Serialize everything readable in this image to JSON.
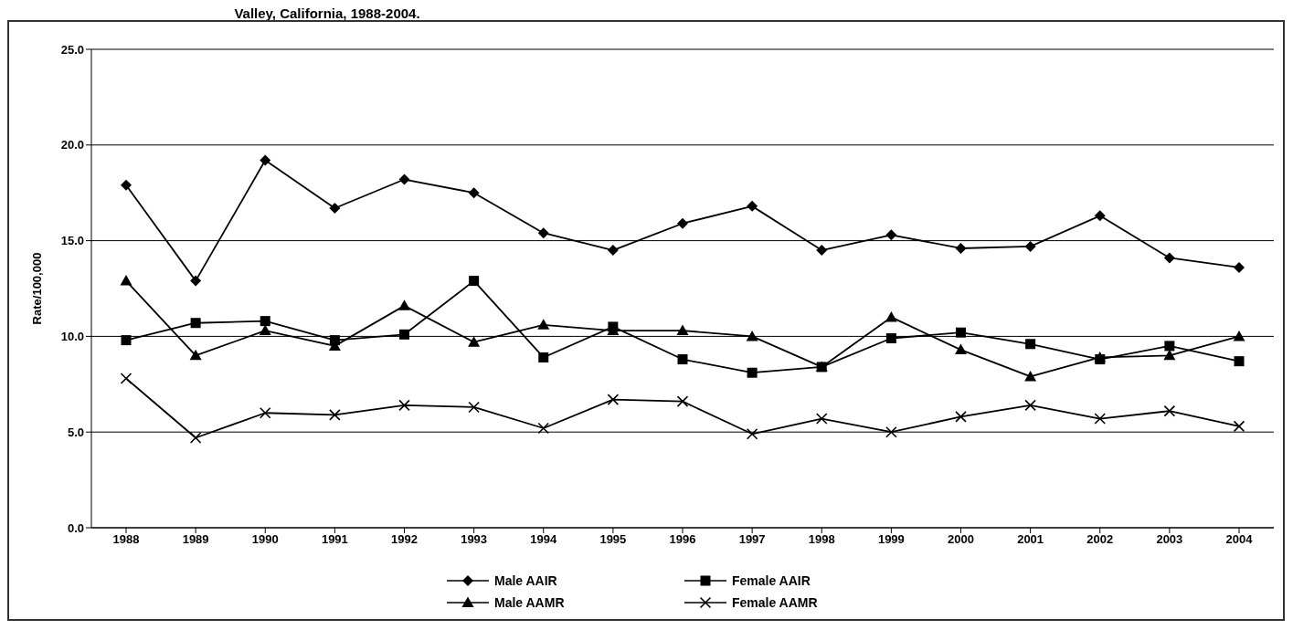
{
  "chart_data": {
    "type": "line",
    "title": "Valley, California, 1988-2004.",
    "ylabel": "Rate/100,000",
    "categories": [
      "1988",
      "1989",
      "1990",
      "1991",
      "1992",
      "1993",
      "1994",
      "1995",
      "1996",
      "1997",
      "1998",
      "1999",
      "2000",
      "2001",
      "2002",
      "2003",
      "2004"
    ],
    "series": [
      {
        "name": "Male AAIR",
        "color": "#000000",
        "marker": "diamond",
        "values": [
          17.9,
          12.9,
          19.2,
          16.7,
          18.2,
          17.5,
          15.4,
          14.5,
          15.9,
          16.8,
          14.5,
          15.3,
          14.6,
          14.7,
          16.3,
          14.1,
          13.6
        ]
      },
      {
        "name": "Female AAIR",
        "color": "#000000",
        "marker": "square",
        "values": [
          9.8,
          10.7,
          10.8,
          9.8,
          10.1,
          12.9,
          8.9,
          10.5,
          8.8,
          8.1,
          8.4,
          9.9,
          10.2,
          9.6,
          8.8,
          9.5,
          8.7
        ]
      },
      {
        "name": "Male AAMR",
        "color": "#000000",
        "marker": "triangle",
        "values": [
          12.9,
          9.0,
          10.3,
          9.5,
          11.6,
          9.7,
          10.6,
          10.3,
          10.3,
          10.0,
          8.4,
          11.0,
          9.3,
          7.9,
          8.9,
          9.0,
          10.0
        ]
      },
      {
        "name": "Female AAMR",
        "color": "#000000",
        "marker": "cross",
        "values": [
          7.8,
          4.7,
          6.0,
          5.9,
          6.4,
          6.3,
          5.2,
          6.7,
          6.6,
          4.9,
          5.7,
          5.0,
          5.8,
          6.4,
          5.7,
          6.1,
          5.3
        ]
      }
    ],
    "ylim": [
      0,
      25
    ],
    "yticks": [
      {
        "value": 0,
        "label": "0.0"
      },
      {
        "value": 5,
        "label": "5.0"
      },
      {
        "value": 10,
        "label": "10.0"
      },
      {
        "value": 15,
        "label": "15.0"
      },
      {
        "value": 20,
        "label": "20.0"
      },
      {
        "value": 25,
        "label": "25.0"
      }
    ],
    "grid": "y",
    "legend": "bottom",
    "line_style": "solid"
  }
}
